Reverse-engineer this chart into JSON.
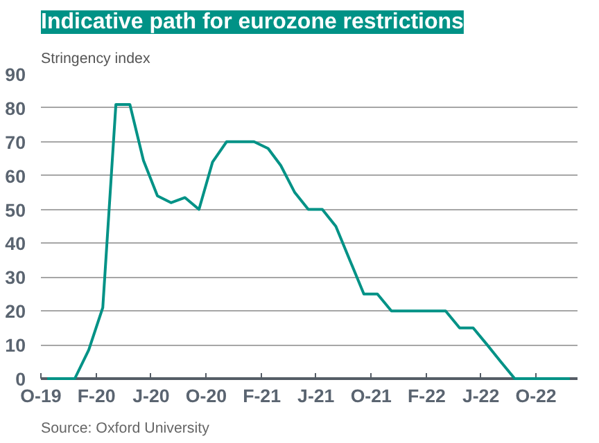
{
  "chart_data": {
    "type": "line",
    "title": "Indicative path for eurozone restrictions",
    "ylabel": "Stringency index",
    "annotations": [
      "Source: Oxford University"
    ],
    "x": [
      "2019-10-15",
      "2019-11-15",
      "2019-12-15",
      "2020-01-15",
      "2020-02-15",
      "2020-03-15",
      "2020-04-15",
      "2020-05-15",
      "2020-06-15",
      "2020-07-15",
      "2020-08-15",
      "2020-09-15",
      "2020-10-15",
      "2020-11-15",
      "2020-12-15",
      "2021-01-15",
      "2021-02-15",
      "2021-03-15",
      "2021-04-15",
      "2021-05-15",
      "2021-06-15",
      "2021-07-15",
      "2021-08-15",
      "2021-09-15",
      "2021-10-15",
      "2021-11-15",
      "2021-12-15",
      "2022-01-15",
      "2022-02-15",
      "2022-03-15",
      "2022-04-15",
      "2022-05-15",
      "2022-06-15",
      "2022-07-15",
      "2022-08-15",
      "2022-09-15",
      "2022-10-15",
      "2022-11-15",
      "2022-12-15"
    ],
    "series": [
      {
        "color": "#009286",
        "values": [
          0,
          0,
          0,
          8.5,
          21,
          81,
          81,
          64.5,
          54,
          52,
          53.5,
          50,
          64,
          70,
          70,
          70,
          68,
          63,
          55,
          50,
          50,
          45,
          35,
          25,
          25,
          20,
          20,
          20,
          20,
          20,
          15,
          15,
          10,
          5,
          0,
          0,
          0,
          0,
          0
        ]
      }
    ],
    "xlim": [
      "2019-10-01",
      "2023-01-01"
    ],
    "xticks": [
      {
        "value": "2019-10-01",
        "label": "O-19"
      },
      {
        "value": "2020-02-01",
        "label": "F-20"
      },
      {
        "value": "2020-06-01",
        "label": "J-20"
      },
      {
        "value": "2020-10-01",
        "label": "O-20"
      },
      {
        "value": "2021-02-01",
        "label": "F-21"
      },
      {
        "value": "2021-06-01",
        "label": "J-21"
      },
      {
        "value": "2021-10-01",
        "label": "O-21"
      },
      {
        "value": "2022-02-01",
        "label": "F-22"
      },
      {
        "value": "2022-06-01",
        "label": "J-22"
      },
      {
        "value": "2022-10-01",
        "label": "O-22"
      }
    ],
    "ylim": [
      0,
      90
    ],
    "yticks": [
      0,
      10,
      20,
      30,
      40,
      50,
      60,
      70,
      80,
      90
    ],
    "grid": "y",
    "marker": "none",
    "line_style": "solid"
  }
}
